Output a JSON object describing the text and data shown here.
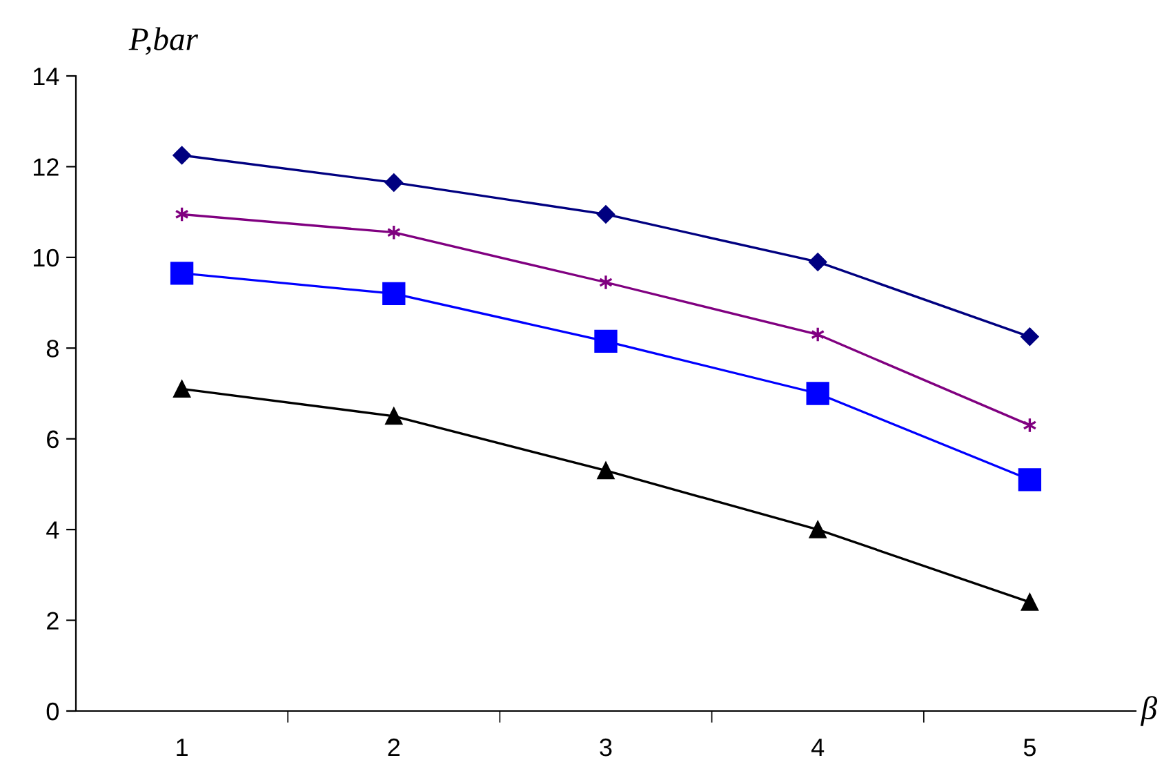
{
  "chart_data": {
    "type": "line",
    "xlabel": "β",
    "ylabel": "P,bar",
    "categories": [
      "1",
      "2",
      "3",
      "4",
      "5"
    ],
    "series": [
      {
        "color": "#000080",
        "marker": "diamond",
        "values": [
          12.25,
          11.65,
          10.95,
          9.9,
          8.25
        ]
      },
      {
        "color": "#800080",
        "marker": "cross",
        "values": [
          10.95,
          10.55,
          9.45,
          8.3,
          6.3
        ]
      },
      {
        "color": "#0000ff",
        "marker": "square",
        "values": [
          9.65,
          9.2,
          8.15,
          7.0,
          5.1
        ]
      },
      {
        "color": "#000000",
        "marker": "triangle",
        "values": [
          7.1,
          6.5,
          5.3,
          4.0,
          2.4
        ]
      }
    ],
    "ylim": [
      0,
      14
    ],
    "yticks": [
      0,
      2,
      4,
      6,
      8,
      10,
      12,
      14
    ],
    "grid": false,
    "legend": false,
    "line_style": "solid"
  }
}
